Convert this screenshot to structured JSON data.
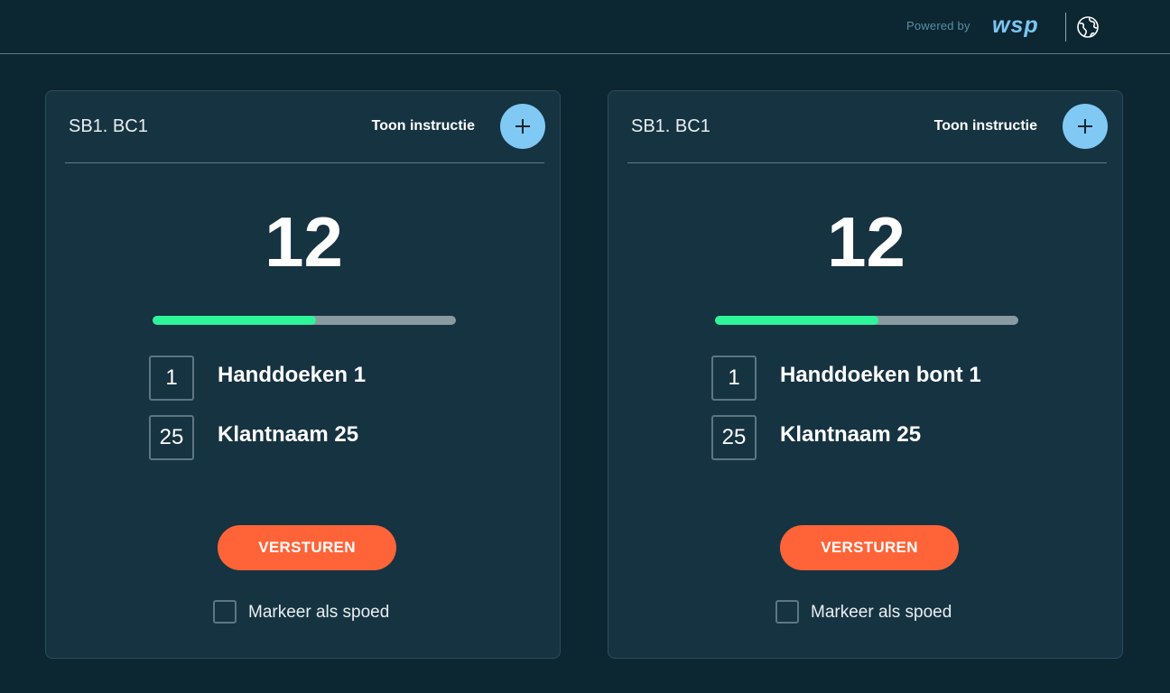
{
  "header": {
    "powered_by": "Powered by",
    "brand": "wsp",
    "brand_color": "#7cc5f2",
    "language_icon": "globe-icon"
  },
  "colors": {
    "background": "#0c2632",
    "card": "#163341",
    "accent_button": "#80c9f5",
    "send_button": "#ff6438",
    "progress": "#2ef59a"
  },
  "cards": [
    {
      "title": "SB1. BC1",
      "instruction_label": "Toon instructie",
      "count": "12",
      "progress_percent": 54,
      "items": [
        {
          "number": "1",
          "label": "Handdoeken 1"
        },
        {
          "number": "25",
          "label": "Klantnaam 25"
        }
      ],
      "send_label": "VERSTUREN",
      "urgent_label": "Markeer als spoed",
      "urgent_checked": false
    },
    {
      "title": "SB1. BC1",
      "instruction_label": "Toon instructie",
      "count": "12",
      "progress_percent": 54,
      "items": [
        {
          "number": "1",
          "label": "Handdoeken bont 1"
        },
        {
          "number": "25",
          "label": "Klantnaam 25"
        }
      ],
      "send_label": "VERSTUREN",
      "urgent_label": "Markeer als spoed",
      "urgent_checked": false
    }
  ]
}
